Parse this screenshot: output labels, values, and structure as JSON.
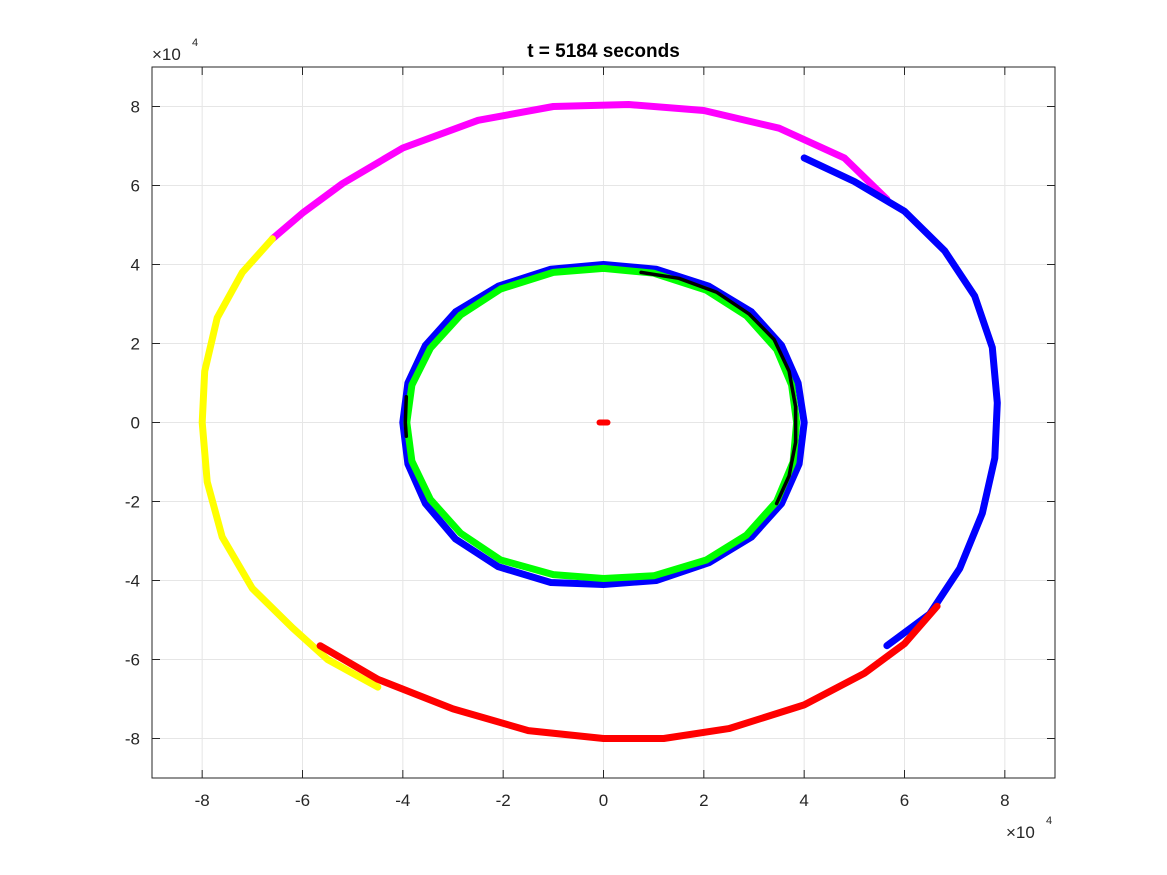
{
  "chart_data": {
    "type": "line",
    "title": "t = 5184 seconds",
    "xlabel": "",
    "ylabel": "",
    "xlim": [
      -90000,
      90000
    ],
    "ylim": [
      -90000,
      90000
    ],
    "x_ticks": [
      -80000,
      -60000,
      -40000,
      -20000,
      0,
      20000,
      40000,
      60000,
      80000
    ],
    "y_ticks": [
      -80000,
      -60000,
      -40000,
      -20000,
      0,
      20000,
      40000,
      60000,
      80000
    ],
    "x_tick_labels": [
      "-8",
      "-6",
      "-4",
      "-2",
      "0",
      "2",
      "4",
      "6",
      "8"
    ],
    "y_tick_labels": [
      "-8",
      "-6",
      "-4",
      "-2",
      "0",
      "2",
      "4",
      "6",
      "8"
    ],
    "x_exponent": {
      "base": "×10",
      "power": "4"
    },
    "y_exponent": {
      "base": "×10",
      "power": "4"
    },
    "grid": true,
    "series": [
      {
        "color": "#ff00ff",
        "points": [
          [
            -66000,
            46500
          ],
          [
            -60000,
            53000
          ],
          [
            -52000,
            60500
          ],
          [
            -40000,
            69500
          ],
          [
            -25000,
            76500
          ],
          [
            -10000,
            80000
          ],
          [
            5000,
            80500
          ],
          [
            20000,
            79000
          ],
          [
            35000,
            74500
          ],
          [
            48000,
            67000
          ],
          [
            56500,
            56500
          ]
        ]
      },
      {
        "color": "#0000ff",
        "points": [
          [
            40000,
            67000
          ],
          [
            50000,
            61000
          ],
          [
            60000,
            53500
          ],
          [
            68000,
            43500
          ],
          [
            74000,
            32000
          ],
          [
            77500,
            19000
          ],
          [
            78500,
            5000
          ],
          [
            78000,
            -9000
          ],
          [
            75500,
            -23000
          ],
          [
            71000,
            -37000
          ],
          [
            65000,
            -48500
          ],
          [
            56500,
            -56500
          ]
        ]
      },
      {
        "color": "#ffff00",
        "points": [
          [
            -66000,
            46500
          ],
          [
            -72000,
            38000
          ],
          [
            -77000,
            26500
          ],
          [
            -79500,
            13000
          ],
          [
            -80000,
            0
          ],
          [
            -79000,
            -15000
          ],
          [
            -76000,
            -29000
          ],
          [
            -70000,
            -42000
          ],
          [
            -62000,
            -52000
          ],
          [
            -55000,
            -60000
          ],
          [
            -45000,
            -67000
          ]
        ]
      },
      {
        "color": "#ff0000",
        "points": [
          [
            -56500,
            -56500
          ],
          [
            -45000,
            -65000
          ],
          [
            -30000,
            -72500
          ],
          [
            -15000,
            -78000
          ],
          [
            0,
            -80000
          ],
          [
            12000,
            -80000
          ],
          [
            25000,
            -77500
          ],
          [
            40000,
            -71500
          ],
          [
            52000,
            -63500
          ],
          [
            60000,
            -56000
          ],
          [
            66500,
            -46500
          ]
        ]
      },
      {
        "color": "#0000ff",
        "points": [
          [
            40000,
            0
          ],
          [
            38800,
            10000
          ],
          [
            35500,
            19500
          ],
          [
            29500,
            28000
          ],
          [
            21000,
            34500
          ],
          [
            10500,
            38800
          ],
          [
            0,
            40000
          ],
          [
            -10500,
            38800
          ],
          [
            -21000,
            34500
          ],
          [
            -29500,
            28000
          ],
          [
            -35500,
            19500
          ],
          [
            -39000,
            10000
          ],
          [
            -40000,
            0
          ],
          [
            -39000,
            -10500
          ],
          [
            -35500,
            -20500
          ],
          [
            -29500,
            -29500
          ],
          [
            -21000,
            -36500
          ],
          [
            -10500,
            -40500
          ],
          [
            0,
            -41000
          ],
          [
            10500,
            -40000
          ],
          [
            21000,
            -35500
          ],
          [
            29500,
            -29000
          ],
          [
            35500,
            -20500
          ],
          [
            39000,
            -10500
          ],
          [
            40000,
            0
          ]
        ]
      },
      {
        "color": "#00ff00",
        "points": [
          [
            38500,
            0
          ],
          [
            37500,
            9500
          ],
          [
            34500,
            18500
          ],
          [
            28500,
            27000
          ],
          [
            20500,
            33500
          ],
          [
            10000,
            37800
          ],
          [
            0,
            39000
          ],
          [
            -10000,
            38000
          ],
          [
            -20500,
            33800
          ],
          [
            -28500,
            27200
          ],
          [
            -34500,
            18800
          ],
          [
            -38200,
            9500
          ],
          [
            -39200,
            0
          ],
          [
            -38200,
            -9800
          ],
          [
            -34500,
            -19500
          ],
          [
            -28500,
            -28000
          ],
          [
            -20500,
            -34800
          ],
          [
            -10000,
            -38500
          ],
          [
            0,
            -39500
          ],
          [
            10000,
            -38800
          ],
          [
            20500,
            -34800
          ],
          [
            28500,
            -28500
          ],
          [
            34500,
            -20000
          ],
          [
            37800,
            -10000
          ],
          [
            38500,
            0
          ]
        ]
      },
      {
        "color": "#000000",
        "points": [
          [
            7500,
            38000
          ],
          [
            15000,
            36500
          ],
          [
            22500,
            33000
          ],
          [
            29000,
            27500
          ],
          [
            34000,
            21000
          ],
          [
            37000,
            13000
          ],
          [
            38300,
            4000
          ],
          [
            38300,
            -5000
          ],
          [
            37000,
            -13500
          ],
          [
            34500,
            -20500
          ]
        ]
      },
      {
        "color": "#000000",
        "points": [
          [
            -39300,
            6500
          ],
          [
            -39500,
            0
          ],
          [
            -39300,
            -3500
          ]
        ]
      },
      {
        "color": "#ff0000",
        "points": [
          [
            -800,
            0
          ],
          [
            800,
            0
          ]
        ]
      }
    ]
  }
}
